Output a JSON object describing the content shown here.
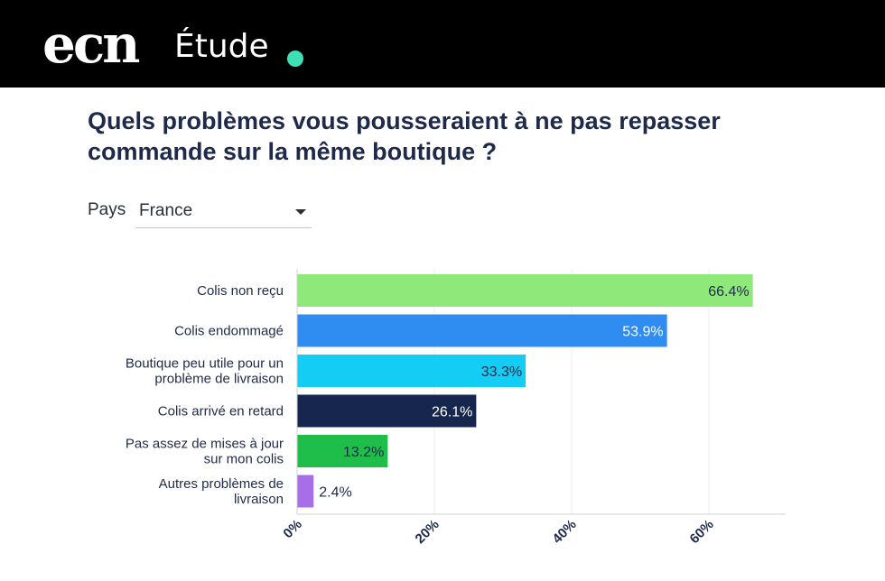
{
  "header": {
    "logo": "ecn",
    "label": "Étude",
    "dot_color": "#3ee0b8"
  },
  "title": "Quels problèmes vous pousseraient à ne pas repasser commande sur la même boutique ?",
  "filter": {
    "label": "Pays",
    "selected": "France"
  },
  "chart_data": {
    "type": "bar",
    "orientation": "horizontal",
    "title": "Quels problèmes vous pousseraient à ne pas repasser commande sur la même boutique ?",
    "categories": [
      [
        "Colis non reçu"
      ],
      [
        "Colis endommagé"
      ],
      [
        "Boutique peu utile pour un",
        "problème de livraison"
      ],
      [
        "Colis arrivé en retard"
      ],
      [
        "Pas assez de mises à jour",
        "sur mon colis"
      ],
      [
        "Autres problèmes de",
        "livraison"
      ]
    ],
    "values": [
      66.4,
      53.9,
      33.3,
      26.1,
      13.2,
      2.4
    ],
    "value_labels": [
      "66.4%",
      "53.9%",
      "33.3%",
      "26.1%",
      "13.2%",
      "2.4%"
    ],
    "colors": [
      "#8ee87a",
      "#2f8cf0",
      "#14cdf5",
      "#16264e",
      "#1fbd4a",
      "#a86ee8"
    ],
    "label_colors": [
      "#1f2a4a",
      "#ffffff",
      "#1f2a4a",
      "#ffffff",
      "#1f2a4a",
      "#1f2a4a"
    ],
    "xlim": [
      0,
      70
    ],
    "ticks": [
      0,
      20,
      40,
      60
    ],
    "tick_labels": [
      "0%",
      "20%",
      "40%",
      "60%"
    ],
    "grid": true
  }
}
